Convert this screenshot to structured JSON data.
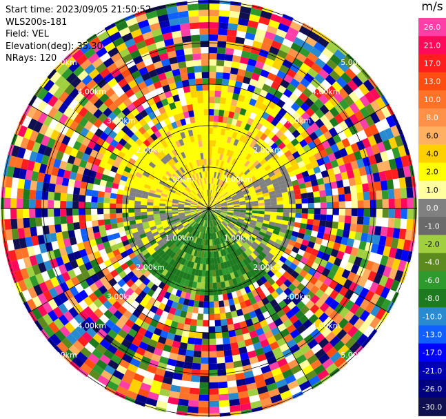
{
  "info": {
    "start_time": "Start time: 2023/09/05 21:50:52",
    "station": "WLS200s-181",
    "field": "Field: VEL",
    "elevation": "Elevation(deg): 35.30",
    "nrays": "NRays: 120"
  },
  "colorbar": {
    "unit": "m/s",
    "ticks": [
      "26.0",
      "21.0",
      "17.0",
      "13.0",
      "10.0",
      "8.0",
      "6.0",
      "4.0",
      "2.0",
      "1.0",
      "0.0",
      "-1.0",
      "-2.0",
      "-4.0",
      "-6.0",
      "-8.0",
      "-10.0",
      "-13.0",
      "-17.0",
      "-21.0",
      "-26.0",
      "-30.0"
    ],
    "colors": [
      "#ff3ea8",
      "#ff0a5a",
      "#ff1e1e",
      "#ff4c10",
      "#ff7228",
      "#ff9148",
      "#ffb060",
      "#ffd000",
      "#ffff00",
      "#ffffa0",
      "#808080",
      "#6a6a6a",
      "#a0d040",
      "#5c8a1e",
      "#2e9a2e",
      "#1e7a1e",
      "#2a8ad0",
      "#1060ff",
      "#0000ff",
      "#0000b0",
      "#000080",
      "#101050"
    ]
  },
  "chart_data": {
    "type": "heatmap",
    "title": "",
    "field": "VEL",
    "unit": "m/s",
    "nrays": 120,
    "elevation_deg": 35.3,
    "range_rings_km": [
      1.0,
      2.0,
      3.0,
      4.0,
      5.0
    ],
    "ring_labels": [
      "1.00km",
      "2.00km",
      "3.00km",
      "4.00km",
      "5.00km"
    ],
    "colorbar_range": [
      -30.0,
      26.0
    ]
  }
}
